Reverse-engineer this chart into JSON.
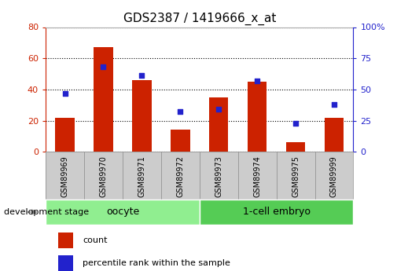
{
  "title": "GDS2387 / 1419666_x_at",
  "samples": [
    "GSM89969",
    "GSM89970",
    "GSM89971",
    "GSM89972",
    "GSM89973",
    "GSM89974",
    "GSM89975",
    "GSM89999"
  ],
  "counts": [
    22,
    67,
    46,
    14,
    35,
    45,
    6,
    22
  ],
  "percentile_ranks": [
    47,
    68,
    61,
    32,
    34,
    57,
    23,
    38
  ],
  "groups": [
    {
      "label": "oocyte",
      "start": 0,
      "end": 4,
      "color": "#90ee90"
    },
    {
      "label": "1-cell embryo",
      "start": 4,
      "end": 8,
      "color": "#55cc55"
    }
  ],
  "left_ylim": [
    0,
    80
  ],
  "right_ylim": [
    0,
    100
  ],
  "left_yticks": [
    0,
    20,
    40,
    60,
    80
  ],
  "right_yticks": [
    0,
    25,
    50,
    75,
    100
  ],
  "bar_color": "#cc2200",
  "dot_color": "#2222cc",
  "background_color": "#ffffff",
  "grid_color": "#000000",
  "left_tick_color": "#cc2200",
  "right_tick_color": "#2222cc",
  "xtick_box_color": "#cccccc",
  "xtick_box_edge": "#888888",
  "dev_stage_label": "development stage",
  "legend_count_label": "count",
  "legend_pct_label": "percentile rank within the sample",
  "bar_width": 0.5,
  "dot_size": 18,
  "title_fontsize": 11,
  "axis_fontsize": 8,
  "label_fontsize": 8,
  "group_fontsize": 9
}
